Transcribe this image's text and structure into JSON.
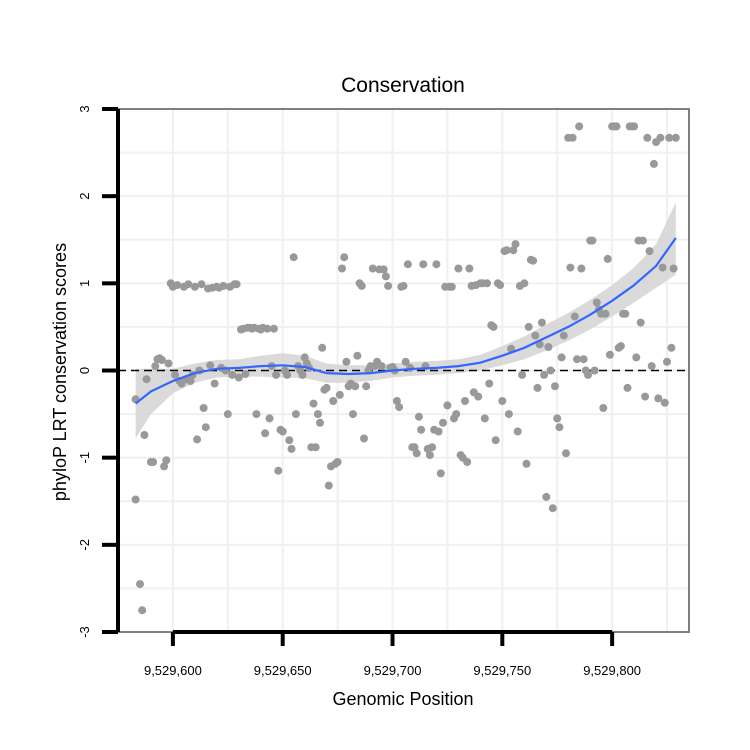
{
  "chart_data": {
    "type": "scatter",
    "title": "Conservation",
    "xlabel": "Genomic Position",
    "ylabel": "phyloP LRT conservation scores",
    "xlim": [
      9529575,
      9529835
    ],
    "ylim": [
      -3,
      3
    ],
    "xticks": [
      9529600,
      9529650,
      9529700,
      9529750,
      9529800
    ],
    "xtick_labels": [
      "9,529,600",
      "9,529,650",
      "9,529,700",
      "9,529,750",
      "9,529,800"
    ],
    "yticks": [
      -3,
      -2,
      -1,
      0,
      1,
      2,
      3
    ],
    "ytick_labels": [
      "-3",
      "-2",
      "-1",
      "0",
      "1",
      "2",
      "3"
    ],
    "reference_line": {
      "y": 0,
      "style": "dashed"
    },
    "colors": {
      "points": "#999999",
      "smooth": "#3366FF",
      "band": "#D3D3D3",
      "panel_border": "#7F7F7F",
      "grid": "#F0F0F0"
    },
    "points": [
      [
        9529583,
        -1.48
      ],
      [
        9529583,
        -0.33
      ],
      [
        9529585,
        -2.45
      ],
      [
        9529586,
        -2.75
      ],
      [
        9529587,
        -0.74
      ],
      [
        9529588,
        -0.1
      ],
      [
        9529590,
        -1.05
      ],
      [
        9529591,
        -1.05
      ],
      [
        9529592,
        0.05
      ],
      [
        9529593,
        0.13
      ],
      [
        9529594,
        0.14
      ],
      [
        9529595,
        0.12
      ],
      [
        9529596,
        -1.1
      ],
      [
        9529597,
        -1.03
      ],
      [
        9529598,
        0.08
      ],
      [
        9529599,
        1.0
      ],
      [
        9529600,
        0.96
      ],
      [
        9529601,
        -0.05
      ],
      [
        9529602,
        0.98
      ],
      [
        9529603,
        -0.12
      ],
      [
        9529604,
        -0.15
      ],
      [
        9529605,
        0.96
      ],
      [
        9529606,
        -0.1
      ],
      [
        9529607,
        0.99
      ],
      [
        9529608,
        -0.12
      ],
      [
        9529609,
        -0.05
      ],
      [
        9529610,
        0.96
      ],
      [
        9529611,
        -0.79
      ],
      [
        9529612,
        0.0
      ],
      [
        9529613,
        0.99
      ],
      [
        9529614,
        -0.43
      ],
      [
        9529615,
        -0.65
      ],
      [
        9529616,
        0.94
      ],
      [
        9529617,
        0.06
      ],
      [
        9529618,
        0.95
      ],
      [
        9529619,
        -0.15
      ],
      [
        9529620,
        0.96
      ],
      [
        9529621,
        0.95
      ],
      [
        9529622,
        0.03
      ],
      [
        9529623,
        0.97
      ],
      [
        9529624,
        0.0
      ],
      [
        9529625,
        -0.5
      ],
      [
        9529626,
        0.96
      ],
      [
        9529627,
        -0.05
      ],
      [
        9529628,
        0.99
      ],
      [
        9529629,
        0.99
      ],
      [
        9529630,
        -0.08
      ],
      [
        9529631,
        0.47
      ],
      [
        9529632,
        0.48
      ],
      [
        9529633,
        -0.04
      ],
      [
        9529634,
        0.49
      ],
      [
        9529635,
        0.49
      ],
      [
        9529636,
        0.48
      ],
      [
        9529637,
        0.49
      ],
      [
        9529638,
        -0.5
      ],
      [
        9529639,
        0.48
      ],
      [
        9529640,
        0.47
      ],
      [
        9529641,
        0.49
      ],
      [
        9529642,
        -0.72
      ],
      [
        9529643,
        0.48
      ],
      [
        9529644,
        -0.55
      ],
      [
        9529645,
        0.05
      ],
      [
        9529646,
        0.48
      ],
      [
        9529647,
        -0.05
      ],
      [
        9529648,
        -1.15
      ],
      [
        9529649,
        -0.68
      ],
      [
        9529650,
        -0.7
      ],
      [
        9529651,
        0.0
      ],
      [
        9529652,
        -0.05
      ],
      [
        9529653,
        -0.8
      ],
      [
        9529654,
        -0.9
      ],
      [
        9529655,
        1.3
      ],
      [
        9529656,
        -0.5
      ],
      [
        9529657,
        0.05
      ],
      [
        9529658,
        0.0
      ],
      [
        9529659,
        -0.05
      ],
      [
        9529660,
        0.15
      ],
      [
        9529661,
        0.08
      ],
      [
        9529662,
        0.03
      ],
      [
        9529663,
        -0.88
      ],
      [
        9529664,
        -0.38
      ],
      [
        9529665,
        -0.88
      ],
      [
        9529666,
        -0.5
      ],
      [
        9529667,
        -0.6
      ],
      [
        9529668,
        0.26
      ],
      [
        9529669,
        -0.22
      ],
      [
        9529670,
        -0.2
      ],
      [
        9529671,
        -1.32
      ],
      [
        9529672,
        -1.1
      ],
      [
        9529673,
        -0.35
      ],
      [
        9529674,
        -1.07
      ],
      [
        9529675,
        -1.05
      ],
      [
        9529676,
        -0.28
      ],
      [
        9529677,
        1.17
      ],
      [
        9529678,
        1.3
      ],
      [
        9529679,
        0.1
      ],
      [
        9529680,
        -0.18
      ],
      [
        9529681,
        -0.15
      ],
      [
        9529682,
        -0.5
      ],
      [
        9529683,
        -0.18
      ],
      [
        9529684,
        0.17
      ],
      [
        9529685,
        1.0
      ],
      [
        9529686,
        0.97
      ],
      [
        9529687,
        -0.78
      ],
      [
        9529688,
        -0.18
      ],
      [
        9529689,
        0.0
      ],
      [
        9529690,
        0.05
      ],
      [
        9529691,
        1.17
      ],
      [
        9529692,
        0.05
      ],
      [
        9529693,
        0.1
      ],
      [
        9529694,
        1.16
      ],
      [
        9529695,
        0.05
      ],
      [
        9529696,
        1.16
      ],
      [
        9529697,
        1.08
      ],
      [
        9529698,
        0.97
      ],
      [
        9529699,
        0.03
      ],
      [
        9529700,
        0.04
      ],
      [
        9529701,
        0.0
      ],
      [
        9529702,
        -0.35
      ],
      [
        9529703,
        -0.42
      ],
      [
        9529704,
        0.96
      ],
      [
        9529705,
        0.97
      ],
      [
        9529706,
        0.1
      ],
      [
        9529707,
        1.22
      ],
      [
        9529708,
        0.03
      ],
      [
        9529709,
        -0.88
      ],
      [
        9529710,
        -0.88
      ],
      [
        9529711,
        -0.95
      ],
      [
        9529712,
        -0.53
      ],
      [
        9529713,
        -0.68
      ],
      [
        9529714,
        1.22
      ],
      [
        9529715,
        0.05
      ],
      [
        9529716,
        -0.9
      ],
      [
        9529717,
        -0.97
      ],
      [
        9529718,
        -0.88
      ],
      [
        9529719,
        -0.68
      ],
      [
        9529720,
        1.22
      ],
      [
        9529721,
        -0.7
      ],
      [
        9529722,
        -1.18
      ],
      [
        9529723,
        -0.6
      ],
      [
        9529724,
        0.96
      ],
      [
        9529725,
        -0.4
      ],
      [
        9529726,
        0.96
      ],
      [
        9529727,
        0.96
      ],
      [
        9529728,
        -0.55
      ],
      [
        9529729,
        -0.5
      ],
      [
        9529730,
        1.17
      ],
      [
        9529731,
        -0.97
      ],
      [
        9529732,
        -1.0
      ],
      [
        9529733,
        -0.35
      ],
      [
        9529734,
        -1.05
      ],
      [
        9529735,
        1.17
      ],
      [
        9529736,
        0.97
      ],
      [
        9529737,
        -0.25
      ],
      [
        9529738,
        0.98
      ],
      [
        9529739,
        -0.3
      ],
      [
        9529740,
        1.0
      ],
      [
        9529741,
        1.0
      ],
      [
        9529742,
        -0.55
      ],
      [
        9529743,
        1.0
      ],
      [
        9529744,
        -0.15
      ],
      [
        9529745,
        0.52
      ],
      [
        9529746,
        0.5
      ],
      [
        9529747,
        -0.8
      ],
      [
        9529748,
        1.0
      ],
      [
        9529749,
        0.98
      ],
      [
        9529750,
        -0.35
      ],
      [
        9529751,
        1.37
      ],
      [
        9529752,
        1.38
      ],
      [
        9529753,
        -0.5
      ],
      [
        9529754,
        0.25
      ],
      [
        9529755,
        1.38
      ],
      [
        9529756,
        1.45
      ],
      [
        9529757,
        -0.7
      ],
      [
        9529758,
        0.97
      ],
      [
        9529759,
        -0.05
      ],
      [
        9529760,
        1.0
      ],
      [
        9529761,
        -1.07
      ],
      [
        9529762,
        0.5
      ],
      [
        9529763,
        1.27
      ],
      [
        9529764,
        1.26
      ],
      [
        9529765,
        0.4
      ],
      [
        9529766,
        -0.2
      ],
      [
        9529767,
        0.3
      ],
      [
        9529768,
        0.55
      ],
      [
        9529769,
        -0.05
      ],
      [
        9529770,
        -1.45
      ],
      [
        9529771,
        0.27
      ],
      [
        9529772,
        0.0
      ],
      [
        9529773,
        -1.58
      ],
      [
        9529774,
        -0.18
      ],
      [
        9529775,
        -0.55
      ],
      [
        9529776,
        -0.65
      ],
      [
        9529777,
        0.15
      ],
      [
        9529778,
        0.4
      ],
      [
        9529779,
        -0.95
      ],
      [
        9529780,
        2.67
      ],
      [
        9529781,
        1.18
      ],
      [
        9529782,
        2.67
      ],
      [
        9529783,
        0.62
      ],
      [
        9529784,
        0.13
      ],
      [
        9529785,
        2.8
      ],
      [
        9529786,
        1.17
      ],
      [
        9529787,
        0.13
      ],
      [
        9529788,
        0.0
      ],
      [
        9529789,
        -0.05
      ],
      [
        9529790,
        1.49
      ],
      [
        9529791,
        1.49
      ],
      [
        9529792,
        0.0
      ],
      [
        9529793,
        0.78
      ],
      [
        9529794,
        0.7
      ],
      [
        9529795,
        0.65
      ],
      [
        9529796,
        -0.43
      ],
      [
        9529797,
        0.65
      ],
      [
        9529798,
        1.28
      ],
      [
        9529799,
        0.18
      ],
      [
        9529800,
        2.8
      ],
      [
        9529801,
        2.8
      ],
      [
        9529802,
        2.8
      ],
      [
        9529803,
        0.26
      ],
      [
        9529804,
        0.28
      ],
      [
        9529805,
        0.65
      ],
      [
        9529806,
        0.65
      ],
      [
        9529807,
        -0.2
      ],
      [
        9529808,
        2.8
      ],
      [
        9529809,
        2.8
      ],
      [
        9529810,
        2.8
      ],
      [
        9529811,
        0.15
      ],
      [
        9529812,
        1.49
      ],
      [
        9529813,
        0.55
      ],
      [
        9529814,
        1.49
      ],
      [
        9529815,
        -0.3
      ],
      [
        9529816,
        2.67
      ],
      [
        9529817,
        1.37
      ],
      [
        9529818,
        0.05
      ],
      [
        9529819,
        2.37
      ],
      [
        9529820,
        2.62
      ],
      [
        9529821,
        -0.32
      ],
      [
        9529822,
        2.67
      ],
      [
        9529823,
        1.18
      ],
      [
        9529824,
        -0.37
      ],
      [
        9529825,
        0.1
      ],
      [
        9529826,
        2.67
      ],
      [
        9529827,
        0.26
      ],
      [
        9529828,
        1.17
      ],
      [
        9529829,
        2.67
      ]
    ],
    "smooth": {
      "method": "loess",
      "x": [
        9529583,
        9529590,
        9529600,
        9529610,
        9529620,
        9529630,
        9529640,
        9529650,
        9529660,
        9529670,
        9529680,
        9529690,
        9529700,
        9529710,
        9529720,
        9529730,
        9529740,
        9529750,
        9529760,
        9529770,
        9529780,
        9529790,
        9529800,
        9529810,
        9529820,
        9529829
      ],
      "y": [
        -0.38,
        -0.24,
        -0.12,
        -0.03,
        0.02,
        0.03,
        0.05,
        0.06,
        0.04,
        -0.03,
        -0.04,
        -0.03,
        0.0,
        0.02,
        0.03,
        0.05,
        0.09,
        0.17,
        0.26,
        0.38,
        0.5,
        0.64,
        0.8,
        0.98,
        1.2,
        1.52
      ],
      "lower": [
        -0.78,
        -0.5,
        -0.26,
        -0.14,
        -0.08,
        -0.07,
        -0.07,
        -0.08,
        -0.09,
        -0.14,
        -0.14,
        -0.12,
        -0.08,
        -0.06,
        -0.05,
        -0.03,
        0.0,
        0.06,
        0.13,
        0.23,
        0.34,
        0.47,
        0.62,
        0.78,
        0.95,
        1.1
      ],
      "upper": [
        0.02,
        0.02,
        0.02,
        0.08,
        0.12,
        0.13,
        0.17,
        0.2,
        0.17,
        0.08,
        0.06,
        0.06,
        0.08,
        0.1,
        0.11,
        0.13,
        0.18,
        0.28,
        0.39,
        0.53,
        0.66,
        0.81,
        0.98,
        1.18,
        1.45,
        1.93
      ]
    }
  }
}
